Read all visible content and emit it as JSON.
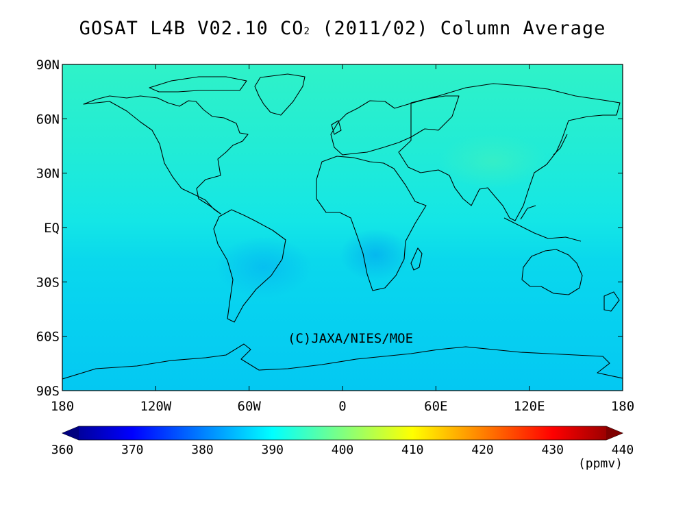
{
  "title": {
    "prefix": "GOSAT L4B V02.10 CO",
    "subscript": "2",
    "suffix": " (2011/02) Column Average"
  },
  "map": {
    "lat_range": [
      -90,
      90
    ],
    "lon_range": [
      -180,
      180
    ],
    "copyright": "(C)JAXA/NIES/MOE",
    "lat_ticks": [
      {
        "value": 90,
        "label": "90N"
      },
      {
        "value": 60,
        "label": "60N"
      },
      {
        "value": 30,
        "label": "30N"
      },
      {
        "value": 0,
        "label": "EQ"
      },
      {
        "value": -30,
        "label": "30S"
      },
      {
        "value": -60,
        "label": "60S"
      },
      {
        "value": -90,
        "label": "90S"
      }
    ],
    "lon_ticks": [
      {
        "value": -180,
        "label": "180"
      },
      {
        "value": -120,
        "label": "120W"
      },
      {
        "value": -60,
        "label": "60W"
      },
      {
        "value": 0,
        "label": "0"
      },
      {
        "value": 60,
        "label": "60E"
      },
      {
        "value": 120,
        "label": "120E"
      },
      {
        "value": 180,
        "label": "180"
      }
    ]
  },
  "colorbar": {
    "min": 360,
    "max": 440,
    "unit": "(ppmv)",
    "tick_labels": [
      "360",
      "370",
      "380",
      "390",
      "400",
      "410",
      "420",
      "430",
      "440"
    ],
    "colors": [
      "#00007f",
      "#0000ff",
      "#0080ff",
      "#00ffff",
      "#80ff80",
      "#ffff00",
      "#ff8000",
      "#ff0000",
      "#7f0000"
    ]
  }
}
